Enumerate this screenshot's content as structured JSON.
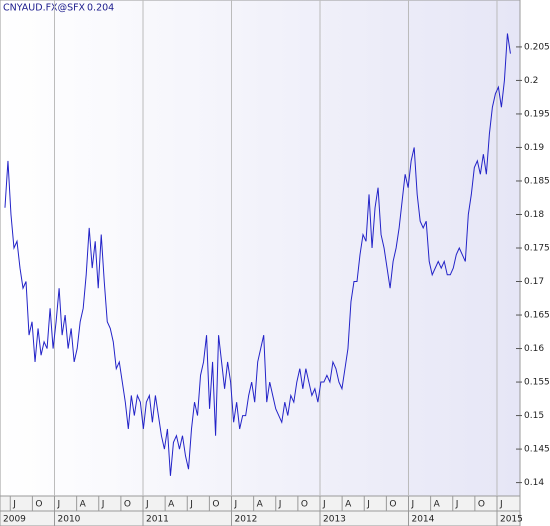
{
  "chart_data": {
    "type": "line",
    "title": "CNYAUD.FX@SFX",
    "subtitle": "0.204",
    "color": "#2323c8",
    "grid": "x",
    "xlim": [
      2009.384,
      2015.26
    ],
    "ylim": [
      0.138,
      0.212
    ],
    "yticks": [
      0.14,
      0.145,
      0.15,
      0.155,
      0.16,
      0.165,
      0.17,
      0.175,
      0.18,
      0.185,
      0.19,
      0.195,
      0.2,
      0.205
    ],
    "xticks": [
      {
        "value": 2009.5,
        "label": "J"
      },
      {
        "value": 2009.75,
        "label": "O"
      },
      {
        "value": 2010,
        "label": "J"
      },
      {
        "value": 2010.25,
        "label": "A"
      },
      {
        "value": 2010.5,
        "label": "J"
      },
      {
        "value": 2010.75,
        "label": "O"
      },
      {
        "value": 2011,
        "label": "J"
      },
      {
        "value": 2011.25,
        "label": "A"
      },
      {
        "value": 2011.5,
        "label": "J"
      },
      {
        "value": 2011.75,
        "label": "O"
      },
      {
        "value": 2012,
        "label": "J"
      },
      {
        "value": 2012.25,
        "label": "A"
      },
      {
        "value": 2012.5,
        "label": "J"
      },
      {
        "value": 2012.75,
        "label": "O"
      },
      {
        "value": 2013,
        "label": "J"
      },
      {
        "value": 2013.25,
        "label": "A"
      },
      {
        "value": 2013.5,
        "label": "J"
      },
      {
        "value": 2013.75,
        "label": "O"
      },
      {
        "value": 2014,
        "label": "J"
      },
      {
        "value": 2014.25,
        "label": "A"
      },
      {
        "value": 2014.5,
        "label": "J"
      },
      {
        "value": 2014.75,
        "label": "O"
      },
      {
        "value": 2015,
        "label": "J"
      }
    ],
    "year_ticks": [
      {
        "value": 2009,
        "label": "2009"
      },
      {
        "value": 2010,
        "label": "2010"
      },
      {
        "value": 2011,
        "label": "2011"
      },
      {
        "value": 2012,
        "label": "2012"
      },
      {
        "value": 2013,
        "label": "2013"
      },
      {
        "value": 2014,
        "label": "2014"
      },
      {
        "value": 2015,
        "label": "2015"
      }
    ],
    "x": [
      2009.44,
      2009.474,
      2009.508,
      2009.542,
      2009.576,
      2009.61,
      2009.644,
      2009.678,
      2009.712,
      2009.746,
      2009.78,
      2009.814,
      2009.848,
      2009.882,
      2009.916,
      2009.95,
      2009.984,
      2010.018,
      2010.052,
      2010.086,
      2010.12,
      2010.154,
      2010.188,
      2010.222,
      2010.256,
      2010.29,
      2010.324,
      2010.358,
      2010.392,
      2010.426,
      2010.46,
      2010.494,
      2010.528,
      2010.562,
      2010.596,
      2010.63,
      2010.664,
      2010.698,
      2010.732,
      2010.766,
      2010.8,
      2010.834,
      2010.868,
      2010.902,
      2010.936,
      2010.97,
      2011.004,
      2011.038,
      2011.072,
      2011.106,
      2011.14,
      2011.174,
      2011.208,
      2011.242,
      2011.276,
      2011.31,
      2011.344,
      2011.378,
      2011.412,
      2011.446,
      2011.48,
      2011.514,
      2011.548,
      2011.582,
      2011.616,
      2011.65,
      2011.684,
      2011.718,
      2011.752,
      2011.786,
      2011.82,
      2011.854,
      2011.888,
      2011.922,
      2011.956,
      2011.99,
      2012.024,
      2012.058,
      2012.092,
      2012.126,
      2012.16,
      2012.194,
      2012.228,
      2012.262,
      2012.296,
      2012.33,
      2012.364,
      2012.398,
      2012.432,
      2012.466,
      2012.5,
      2012.534,
      2012.568,
      2012.602,
      2012.636,
      2012.67,
      2012.704,
      2012.738,
      2012.772,
      2012.806,
      2012.84,
      2012.874,
      2012.908,
      2012.942,
      2012.976,
      2013.01,
      2013.044,
      2013.078,
      2013.112,
      2013.146,
      2013.18,
      2013.214,
      2013.248,
      2013.282,
      2013.316,
      2013.35,
      2013.384,
      2013.418,
      2013.452,
      2013.486,
      2013.52,
      2013.554,
      2013.588,
      2013.622,
      2013.656,
      2013.69,
      2013.724,
      2013.758,
      2013.792,
      2013.826,
      2013.86,
      2013.894,
      2013.928,
      2013.962,
      2013.996,
      2014.03,
      2014.064,
      2014.098,
      2014.132,
      2014.166,
      2014.2,
      2014.234,
      2014.268,
      2014.302,
      2014.336,
      2014.37,
      2014.404,
      2014.438,
      2014.472,
      2014.506,
      2014.54,
      2014.574,
      2014.608,
      2014.642,
      2014.676,
      2014.71,
      2014.744,
      2014.778,
      2014.812,
      2014.846,
      2014.88,
      2014.914,
      2014.948,
      2014.982,
      2015.016,
      2015.05,
      2015.084,
      2015.118,
      2015.152
    ],
    "values": [
      0.181,
      0.188,
      0.18,
      0.175,
      0.176,
      0.172,
      0.169,
      0.17,
      0.162,
      0.164,
      0.158,
      0.163,
      0.159,
      0.161,
      0.16,
      0.166,
      0.16,
      0.164,
      0.169,
      0.162,
      0.165,
      0.16,
      0.163,
      0.158,
      0.16,
      0.164,
      0.166,
      0.171,
      0.178,
      0.172,
      0.176,
      0.169,
      0.177,
      0.17,
      0.164,
      0.163,
      0.161,
      0.157,
      0.158,
      0.155,
      0.152,
      0.148,
      0.153,
      0.15,
      0.153,
      0.152,
      0.148,
      0.152,
      0.153,
      0.149,
      0.153,
      0.15,
      0.147,
      0.145,
      0.148,
      0.141,
      0.146,
      0.147,
      0.145,
      0.147,
      0.144,
      0.142,
      0.148,
      0.152,
      0.15,
      0.156,
      0.158,
      0.162,
      0.151,
      0.158,
      0.147,
      0.162,
      0.158,
      0.154,
      0.158,
      0.155,
      0.149,
      0.152,
      0.148,
      0.15,
      0.15,
      0.153,
      0.155,
      0.152,
      0.158,
      0.16,
      0.162,
      0.152,
      0.155,
      0.153,
      0.151,
      0.15,
      0.149,
      0.152,
      0.15,
      0.153,
      0.152,
      0.155,
      0.157,
      0.154,
      0.157,
      0.155,
      0.153,
      0.154,
      0.152,
      0.155,
      0.155,
      0.156,
      0.155,
      0.158,
      0.157,
      0.155,
      0.154,
      0.157,
      0.16,
      0.167,
      0.17,
      0.17,
      0.174,
      0.177,
      0.176,
      0.183,
      0.175,
      0.181,
      0.184,
      0.177,
      0.175,
      0.172,
      0.169,
      0.173,
      0.175,
      0.178,
      0.182,
      0.186,
      0.184,
      0.188,
      0.19,
      0.183,
      0.179,
      0.178,
      0.179,
      0.173,
      0.171,
      0.172,
      0.173,
      0.172,
      0.173,
      0.171,
      0.171,
      0.172,
      0.174,
      0.175,
      0.174,
      0.173,
      0.18,
      0.183,
      0.187,
      0.188,
      0.186,
      0.189,
      0.186,
      0.192,
      0.196,
      0.198,
      0.199,
      0.196,
      0.2,
      0.207,
      0.204
    ]
  }
}
